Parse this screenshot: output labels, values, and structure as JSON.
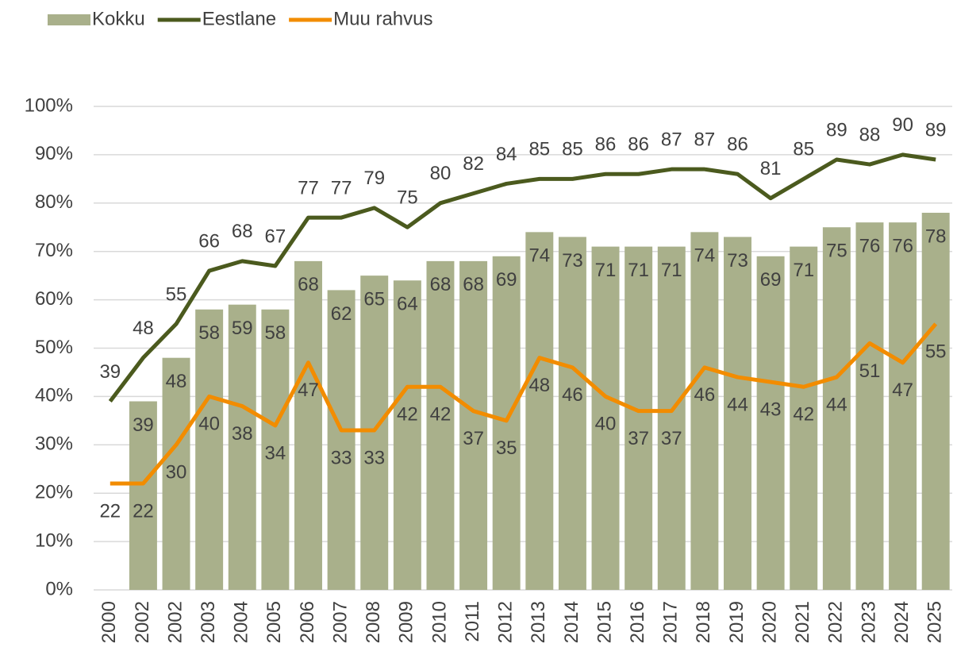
{
  "chart_data": {
    "type": "bar",
    "categories": [
      "2000",
      "2002",
      "2002",
      "2003",
      "2004",
      "2005",
      "2006",
      "2007",
      "2008",
      "2009",
      "2010",
      "2011",
      "2012",
      "2013",
      "2014",
      "2015",
      "2016",
      "2017",
      "2018",
      "2019",
      "2020",
      "2021",
      "2022",
      "2023",
      "2024",
      "2025"
    ],
    "series": [
      {
        "name": "Kokku",
        "type": "bar",
        "color": "#a9b08b",
        "values": [
          null,
          39,
          48,
          58,
          59,
          58,
          68,
          62,
          65,
          64,
          68,
          68,
          69,
          74,
          73,
          71,
          71,
          71,
          74,
          73,
          69,
          71,
          75,
          76,
          76,
          78
        ]
      },
      {
        "name": "Eestlane",
        "type": "line",
        "color": "#4b5a1e",
        "values": [
          39,
          48,
          55,
          66,
          68,
          67,
          77,
          77,
          79,
          75,
          80,
          82,
          84,
          85,
          85,
          86,
          86,
          87,
          87,
          86,
          81,
          85,
          89,
          88,
          90,
          89
        ]
      },
      {
        "name": "Muu rahvus",
        "type": "line",
        "color": "#f28c00",
        "values": [
          22,
          22,
          30,
          40,
          38,
          34,
          47,
          33,
          33,
          42,
          42,
          37,
          35,
          48,
          46,
          40,
          37,
          37,
          46,
          44,
          43,
          42,
          44,
          51,
          47,
          55
        ]
      }
    ],
    "ylim": [
      0,
      100
    ],
    "yticks": [
      {
        "value": 0,
        "label": "0%"
      },
      {
        "value": 10,
        "label": "10%"
      },
      {
        "value": 20,
        "label": "20%"
      },
      {
        "value": 30,
        "label": "30%"
      },
      {
        "value": 40,
        "label": "40%"
      },
      {
        "value": 50,
        "label": "50%"
      },
      {
        "value": 60,
        "label": "60%"
      },
      {
        "value": 70,
        "label": "70%"
      },
      {
        "value": 80,
        "label": "80%"
      },
      {
        "value": 90,
        "label": "90%"
      },
      {
        "value": 100,
        "label": "100%"
      }
    ],
    "grid": true,
    "legend": "top-left"
  }
}
